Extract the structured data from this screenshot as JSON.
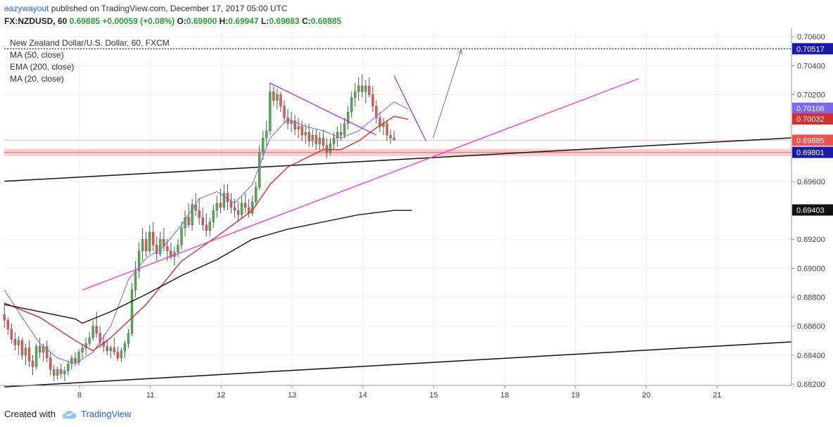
{
  "header": {
    "user": "eazywayout",
    "published_text": " published on TradingView.com, December 17, 2017 05:00 UTC"
  },
  "symbol_line": {
    "symbol": "FX:NZDUSD, 60",
    "last": "0.69885",
    "change": "+0.00059 (+0.08%)",
    "o_label": "O:",
    "o": "0.69900",
    "h_label": "H:",
    "h": "0.69947",
    "l_label": "L:",
    "l": "0.69883",
    "c_label": "C:",
    "c": "0.69885"
  },
  "legend": {
    "title": "New Zealand Dollar/U.S. Dollar, 60, FXCM",
    "indicators": [
      "MA (50, close)",
      "EMA (200, close)",
      "MA (20, close)"
    ]
  },
  "footer": {
    "created_with": "Created with",
    "brand": "TradingView"
  },
  "colors": {
    "up": "#4caf50",
    "down": "#ef5350",
    "wick": "#555555",
    "ma50": "#d32f2f",
    "ema200": "#111111",
    "ma20": "#7b68ee",
    "trend_pink": "#ff2ecb",
    "trend_purple": "#9c27ff",
    "channel": "#111111",
    "zone": "#f4a6a6",
    "resistance": "#1a1aa8",
    "arrow": "#777777"
  },
  "chart_data": {
    "type": "candlestick",
    "x_ticks": [
      "8",
      "11",
      "12",
      "13",
      "14",
      "15",
      "18",
      "19",
      "20",
      "21"
    ],
    "y_ticks": [
      "0.70600",
      "0.70400",
      "0.70200",
      "0.69600",
      "0.69200",
      "0.69000",
      "0.68800",
      "0.68600",
      "0.68400",
      "0.68200"
    ],
    "ylim": [
      0.6819,
      0.7064
    ],
    "price_labels": [
      {
        "text": "0.70517",
        "value": 0.70517,
        "bg": "#1a1aa8",
        "fg": "#ffffff"
      },
      {
        "text": "0.70106",
        "value": 0.70106,
        "bg": "#7b68ee",
        "fg": "#ffffff"
      },
      {
        "text": "0.70032",
        "value": 0.70032,
        "bg": "#d32f2f",
        "fg": "#ffffff"
      },
      {
        "text": "0.69885",
        "value": 0.69885,
        "bg": "#ef5350",
        "fg": "#ffffff"
      },
      {
        "text": "0.69801",
        "value": 0.69801,
        "bg": "#1a1aa8",
        "fg": "#ffffff"
      },
      {
        "text": "0.69403",
        "value": 0.69403,
        "bg": "#111111",
        "fg": "#ffffff"
      }
    ],
    "resistance_level": 0.70517,
    "zone": [
      0.69775,
      0.69825
    ],
    "ma20": [
      [
        0.0,
        0.6885
      ],
      [
        0.25,
        0.6866
      ],
      [
        0.5,
        0.6848
      ],
      [
        0.75,
        0.6838
      ],
      [
        1.0,
        0.6834
      ],
      [
        1.25,
        0.6842
      ],
      [
        1.5,
        0.686
      ],
      [
        1.75,
        0.6892
      ],
      [
        2.0,
        0.6907
      ],
      [
        2.25,
        0.6915
      ],
      [
        2.5,
        0.693
      ],
      [
        2.75,
        0.6948
      ],
      [
        3.0,
        0.6953
      ],
      [
        3.25,
        0.6945
      ],
      [
        3.5,
        0.6958
      ],
      [
        3.75,
        0.699
      ],
      [
        4.0,
        0.7003
      ],
      [
        4.25,
        0.6998
      ],
      [
        4.5,
        0.6995
      ],
      [
        4.75,
        0.699
      ],
      [
        5.0,
        0.6995
      ],
      [
        5.25,
        0.7005
      ],
      [
        5.5,
        0.7015
      ],
      [
        5.7,
        0.701
      ]
    ],
    "ma50": [
      [
        0.0,
        0.6876
      ],
      [
        0.5,
        0.6866
      ],
      [
        1.0,
        0.685
      ],
      [
        1.25,
        0.6843
      ],
      [
        1.5,
        0.6852
      ],
      [
        2.0,
        0.6875
      ],
      [
        2.5,
        0.6905
      ],
      [
        3.0,
        0.6922
      ],
      [
        3.5,
        0.694
      ],
      [
        3.75,
        0.6958
      ],
      [
        4.0,
        0.697
      ],
      [
        4.5,
        0.6982
      ],
      [
        4.75,
        0.6982
      ],
      [
        5.0,
        0.6988
      ],
      [
        5.25,
        0.6997
      ],
      [
        5.5,
        0.7005
      ],
      [
        5.7,
        0.7003
      ]
    ],
    "ema200": [
      [
        0.0,
        0.6875
      ],
      [
        0.5,
        0.687
      ],
      [
        1.0,
        0.6865
      ],
      [
        1.1,
        0.6862
      ],
      [
        1.5,
        0.687
      ],
      [
        2.0,
        0.6882
      ],
      [
        2.5,
        0.6895
      ],
      [
        3.0,
        0.6906
      ],
      [
        3.5,
        0.692
      ],
      [
        4.0,
        0.6927
      ],
      [
        4.5,
        0.6932
      ],
      [
        5.0,
        0.6937
      ],
      [
        5.5,
        0.694
      ],
      [
        5.75,
        0.694
      ]
    ],
    "drawings": {
      "pink_trendline": [
        [
          1.1,
          0.6885
        ],
        [
          8.95,
          0.7031
        ]
      ],
      "purple_upper_1": [
        [
          3.75,
          0.7028
        ],
        [
          5.25,
          0.6992
        ]
      ],
      "purple_upper_2": [
        [
          5.5,
          0.7033
        ],
        [
          5.95,
          0.6988
        ]
      ],
      "channel_upper": [
        [
          0.0,
          0.6963
        ],
        [
          10.0,
          0.699
        ]
      ],
      "channel_lower": [
        [
          0.0,
          0.6821
        ],
        [
          10.0,
          0.6849
        ]
      ],
      "arrow": [
        [
          6.05,
          0.699
        ],
        [
          6.45,
          0.7051
        ]
      ]
    },
    "ohlc": [
      [
        0.0,
        0.6868,
        0.6876,
        0.6859,
        0.6864
      ],
      [
        0.05,
        0.6864,
        0.6866,
        0.6854,
        0.6858
      ],
      [
        0.1,
        0.6858,
        0.6862,
        0.6848,
        0.6851
      ],
      [
        0.15,
        0.6851,
        0.6856,
        0.6843,
        0.6847
      ],
      [
        0.2,
        0.6847,
        0.6853,
        0.684,
        0.685
      ],
      [
        0.25,
        0.685,
        0.6852,
        0.6837,
        0.684
      ],
      [
        0.3,
        0.684,
        0.6848,
        0.6833,
        0.6845
      ],
      [
        0.35,
        0.6845,
        0.685,
        0.6832,
        0.6836
      ],
      [
        0.4,
        0.6836,
        0.684,
        0.6826,
        0.6832
      ],
      [
        0.45,
        0.6832,
        0.6848,
        0.683,
        0.6846
      ],
      [
        0.5,
        0.6846,
        0.6852,
        0.6838,
        0.6842
      ],
      [
        0.55,
        0.6842,
        0.6848,
        0.6836,
        0.6846
      ],
      [
        0.6,
        0.6846,
        0.685,
        0.6835,
        0.6838
      ],
      [
        0.65,
        0.6838,
        0.6842,
        0.6826,
        0.683
      ],
      [
        0.7,
        0.683,
        0.6833,
        0.6822,
        0.6826
      ],
      [
        0.75,
        0.6826,
        0.6832,
        0.6823,
        0.683
      ],
      [
        0.8,
        0.683,
        0.6834,
        0.6824,
        0.6827
      ],
      [
        0.85,
        0.6827,
        0.6832,
        0.6822,
        0.6829
      ],
      [
        0.9,
        0.6829,
        0.6836,
        0.6826,
        0.6834
      ],
      [
        0.95,
        0.6834,
        0.684,
        0.683,
        0.6838
      ],
      [
        1.0,
        0.6838,
        0.6842,
        0.6832,
        0.6835
      ],
      [
        1.05,
        0.6835,
        0.6844,
        0.6833,
        0.6842
      ],
      [
        1.1,
        0.6842,
        0.6848,
        0.6838,
        0.6845
      ],
      [
        1.15,
        0.6845,
        0.6852,
        0.684,
        0.6848
      ],
      [
        1.2,
        0.6848,
        0.6856,
        0.6846,
        0.6852
      ],
      [
        1.25,
        0.6852,
        0.6864,
        0.685,
        0.686
      ],
      [
        1.3,
        0.686,
        0.687,
        0.6852,
        0.6855
      ],
      [
        1.35,
        0.6855,
        0.686,
        0.6845,
        0.6849
      ],
      [
        1.4,
        0.6849,
        0.6854,
        0.6842,
        0.6846
      ],
      [
        1.45,
        0.6846,
        0.685,
        0.684,
        0.6843
      ],
      [
        1.5,
        0.6843,
        0.6847,
        0.6838,
        0.6845
      ],
      [
        1.55,
        0.6845,
        0.6852,
        0.684,
        0.6842
      ],
      [
        1.6,
        0.6842,
        0.6846,
        0.6836,
        0.6838
      ],
      [
        1.65,
        0.6838,
        0.6845,
        0.6835,
        0.6843
      ],
      [
        1.7,
        0.6843,
        0.685,
        0.6838,
        0.6848
      ],
      [
        1.75,
        0.6848,
        0.6858,
        0.6845,
        0.6855
      ],
      [
        1.8,
        0.6855,
        0.689,
        0.6853,
        0.6885
      ],
      [
        1.85,
        0.6885,
        0.6905,
        0.688,
        0.6898
      ],
      [
        1.9,
        0.6898,
        0.6918,
        0.6893,
        0.6912
      ],
      [
        1.95,
        0.6912,
        0.6928,
        0.6905,
        0.692
      ],
      [
        2.0,
        0.692,
        0.6925,
        0.6908,
        0.6912
      ],
      [
        2.05,
        0.6912,
        0.693,
        0.691,
        0.6925
      ],
      [
        2.1,
        0.6925,
        0.6932,
        0.6912,
        0.6916
      ],
      [
        2.15,
        0.6916,
        0.6922,
        0.6905,
        0.691
      ],
      [
        2.2,
        0.691,
        0.6925,
        0.6908,
        0.692
      ],
      [
        2.25,
        0.692,
        0.6928,
        0.6912,
        0.6915
      ],
      [
        2.3,
        0.6915,
        0.692,
        0.6905,
        0.6912
      ],
      [
        2.35,
        0.6912,
        0.6918,
        0.6906,
        0.6908
      ],
      [
        2.4,
        0.6908,
        0.6915,
        0.6902,
        0.6911
      ],
      [
        2.45,
        0.6911,
        0.692,
        0.6908,
        0.6916
      ],
      [
        2.5,
        0.6916,
        0.6932,
        0.6913,
        0.6928
      ],
      [
        2.55,
        0.6928,
        0.694,
        0.6922,
        0.6935
      ],
      [
        2.6,
        0.6935,
        0.6945,
        0.6928,
        0.693
      ],
      [
        2.65,
        0.693,
        0.6948,
        0.6926,
        0.6944
      ],
      [
        2.7,
        0.6944,
        0.6952,
        0.6936,
        0.694
      ],
      [
        2.75,
        0.694,
        0.6948,
        0.693,
        0.6935
      ],
      [
        2.8,
        0.6935,
        0.6942,
        0.6926,
        0.693
      ],
      [
        2.85,
        0.693,
        0.6938,
        0.6922,
        0.6926
      ],
      [
        2.9,
        0.6926,
        0.6935,
        0.6922,
        0.6932
      ],
      [
        2.95,
        0.6932,
        0.6944,
        0.6928,
        0.694
      ],
      [
        3.0,
        0.694,
        0.695,
        0.6935,
        0.6945
      ],
      [
        3.05,
        0.6945,
        0.6955,
        0.6938,
        0.6942
      ],
      [
        3.1,
        0.6942,
        0.6958,
        0.694,
        0.6952
      ],
      [
        3.15,
        0.6952,
        0.6958,
        0.694,
        0.6946
      ],
      [
        3.2,
        0.6946,
        0.6952,
        0.6938,
        0.6942
      ],
      [
        3.25,
        0.6942,
        0.6948,
        0.6935,
        0.694
      ],
      [
        3.3,
        0.694,
        0.6946,
        0.6932,
        0.6937
      ],
      [
        3.35,
        0.6937,
        0.695,
        0.6934,
        0.6945
      ],
      [
        3.4,
        0.6945,
        0.6952,
        0.6938,
        0.6942
      ],
      [
        3.45,
        0.6942,
        0.6948,
        0.6935,
        0.6938
      ],
      [
        3.5,
        0.6938,
        0.695,
        0.6936,
        0.6946
      ],
      [
        3.55,
        0.6946,
        0.696,
        0.6944,
        0.6956
      ],
      [
        3.6,
        0.6956,
        0.6985,
        0.6954,
        0.698
      ],
      [
        3.65,
        0.698,
        0.6995,
        0.6975,
        0.699
      ],
      [
        3.7,
        0.699,
        0.7002,
        0.6984,
        0.6995
      ],
      [
        3.75,
        0.6995,
        0.7028,
        0.6992,
        0.7022
      ],
      [
        3.8,
        0.7022,
        0.7026,
        0.7012,
        0.7016
      ],
      [
        3.85,
        0.7016,
        0.7024,
        0.701,
        0.702
      ],
      [
        3.9,
        0.702,
        0.7022,
        0.7008,
        0.7012
      ],
      [
        3.95,
        0.7012,
        0.7016,
        0.7,
        0.7004
      ],
      [
        4.0,
        0.7004,
        0.701,
        0.6996,
        0.7
      ],
      [
        4.05,
        0.7,
        0.7008,
        0.6994,
        0.7002
      ],
      [
        4.1,
        0.7002,
        0.7006,
        0.6992,
        0.6996
      ],
      [
        4.15,
        0.6996,
        0.7004,
        0.699,
        0.6998
      ],
      [
        4.2,
        0.6998,
        0.7002,
        0.6988,
        0.6992
      ],
      [
        4.25,
        0.6992,
        0.7,
        0.6986,
        0.6994
      ],
      [
        4.3,
        0.6994,
        0.7,
        0.6984,
        0.6988
      ],
      [
        4.35,
        0.6988,
        0.6996,
        0.6984,
        0.6992
      ],
      [
        4.4,
        0.6992,
        0.6996,
        0.6982,
        0.6986
      ],
      [
        4.45,
        0.6986,
        0.6994,
        0.6982,
        0.699
      ],
      [
        4.5,
        0.699,
        0.6996,
        0.6982,
        0.6985
      ],
      [
        4.55,
        0.6985,
        0.699,
        0.6976,
        0.698
      ],
      [
        4.6,
        0.698,
        0.699,
        0.6978,
        0.6986
      ],
      [
        4.65,
        0.6986,
        0.6994,
        0.6982,
        0.699
      ],
      [
        4.7,
        0.699,
        0.6998,
        0.6984,
        0.6994
      ],
      [
        4.75,
        0.6994,
        0.7,
        0.6988,
        0.6992
      ],
      [
        4.8,
        0.6992,
        0.7004,
        0.699,
        0.7
      ],
      [
        4.85,
        0.7,
        0.7012,
        0.6996,
        0.7008
      ],
      [
        4.9,
        0.7008,
        0.7022,
        0.7004,
        0.7018
      ],
      [
        4.95,
        0.7018,
        0.7028,
        0.7012,
        0.7022
      ],
      [
        5.0,
        0.7022,
        0.7032,
        0.7016,
        0.7026
      ],
      [
        5.05,
        0.7026,
        0.7034,
        0.7018,
        0.7022
      ],
      [
        5.1,
        0.7022,
        0.703,
        0.7014,
        0.7026
      ],
      [
        5.15,
        0.7026,
        0.7032,
        0.7018,
        0.702
      ],
      [
        5.2,
        0.702,
        0.7026,
        0.7008,
        0.7012
      ],
      [
        5.25,
        0.7012,
        0.7016,
        0.7,
        0.7004
      ],
      [
        5.3,
        0.7004,
        0.7008,
        0.6994,
        0.6998
      ],
      [
        5.35,
        0.6998,
        0.7004,
        0.6992,
        0.7
      ],
      [
        5.4,
        0.7,
        0.7002,
        0.6988,
        0.6992
      ],
      [
        5.45,
        0.6992,
        0.6996,
        0.6986,
        0.699
      ],
      [
        5.5,
        0.699,
        0.6995,
        0.6988,
        0.6989
      ]
    ]
  }
}
